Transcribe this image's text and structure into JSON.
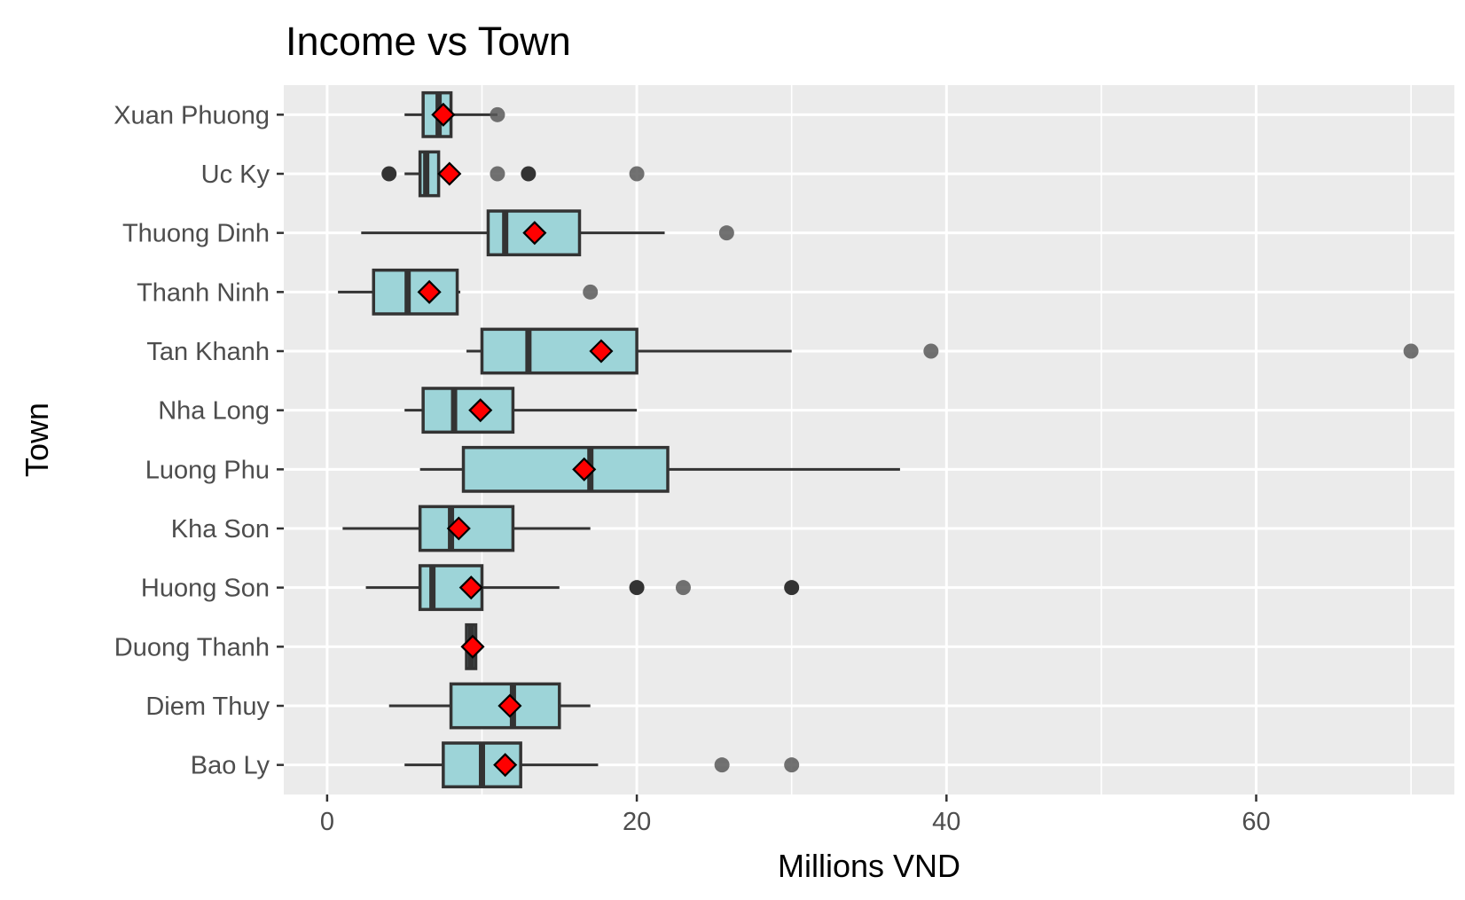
{
  "chart_data": {
    "type": "boxplot",
    "orientation": "horizontal",
    "title": "Income vs Town",
    "xlabel": "Millions VND",
    "ylabel": "Town",
    "xlim": [
      -2.8,
      72.8
    ],
    "x_ticks": [
      0,
      20,
      40,
      60
    ],
    "grid": true,
    "legend": "none",
    "colors": {
      "panel": "#ebebeb",
      "grid": "#ffffff",
      "box_fill": "#9dd4d8",
      "box_stroke": "#333333",
      "mean_marker": "#ff0000",
      "outlier": "#595959",
      "outlier_dark": "#333333"
    },
    "categories": [
      "Bao Ly",
      "Diem Thuy",
      "Duong Thanh",
      "Huong Son",
      "Kha Son",
      "Luong Phu",
      "Nha Long",
      "Tan Khanh",
      "Thanh Ninh",
      "Thuong Dinh",
      "Uc Ky",
      "Xuan Phuong"
    ],
    "series": [
      {
        "category": "Bao Ly",
        "whisker_low": 5.0,
        "q1": 7.5,
        "median": 10.0,
        "q3": 12.5,
        "whisker_high": 17.5,
        "mean": 11.5,
        "outliers": [
          {
            "x": 25.5,
            "dark": false
          },
          {
            "x": 30.0,
            "dark": false
          }
        ]
      },
      {
        "category": "Diem Thuy",
        "whisker_low": 4.0,
        "q1": 8.0,
        "median": 12.0,
        "q3": 15.0,
        "whisker_high": 17.0,
        "mean": 11.8,
        "outliers": []
      },
      {
        "category": "Duong Thanh",
        "whisker_low": 9.0,
        "q1": 9.0,
        "median": 9.3,
        "q3": 9.6,
        "whisker_high": 9.6,
        "mean": 9.4,
        "outliers": []
      },
      {
        "category": "Huong Son",
        "whisker_low": 2.5,
        "q1": 6.0,
        "median": 6.8,
        "q3": 10.0,
        "whisker_high": 15.0,
        "mean": 9.3,
        "outliers": [
          {
            "x": 20.0,
            "dark": true
          },
          {
            "x": 23.0,
            "dark": false
          },
          {
            "x": 30.0,
            "dark": true
          }
        ]
      },
      {
        "category": "Kha Son",
        "whisker_low": 1.0,
        "q1": 6.0,
        "median": 8.0,
        "q3": 12.0,
        "whisker_high": 17.0,
        "mean": 8.5,
        "outliers": []
      },
      {
        "category": "Luong Phu",
        "whisker_low": 6.0,
        "q1": 8.8,
        "median": 17.0,
        "q3": 22.0,
        "whisker_high": 37.0,
        "mean": 16.6,
        "outliers": []
      },
      {
        "category": "Nha Long",
        "whisker_low": 5.0,
        "q1": 6.2,
        "median": 8.2,
        "q3": 12.0,
        "whisker_high": 20.0,
        "mean": 9.9,
        "outliers": []
      },
      {
        "category": "Tan Khanh",
        "whisker_low": 9.0,
        "q1": 10.0,
        "median": 13.0,
        "q3": 20.0,
        "whisker_high": 30.0,
        "mean": 17.7,
        "outliers": [
          {
            "x": 39.0,
            "dark": false
          },
          {
            "x": 70.0,
            "dark": false
          }
        ]
      },
      {
        "category": "Thanh Ninh",
        "whisker_low": 0.7,
        "q1": 3.0,
        "median": 5.2,
        "q3": 8.4,
        "whisker_high": 8.6,
        "mean": 6.6,
        "outliers": [
          {
            "x": 17.0,
            "dark": false
          }
        ]
      },
      {
        "category": "Thuong Dinh",
        "whisker_low": 2.2,
        "q1": 10.4,
        "median": 11.5,
        "q3": 16.3,
        "whisker_high": 21.8,
        "mean": 13.4,
        "outliers": [
          {
            "x": 25.8,
            "dark": false
          }
        ]
      },
      {
        "category": "Uc Ky",
        "whisker_low": 5.0,
        "q1": 6.0,
        "median": 6.4,
        "q3": 7.2,
        "whisker_high": 7.2,
        "mean": 7.9,
        "outliers": [
          {
            "x": 4.0,
            "dark": true
          },
          {
            "x": 11.0,
            "dark": false
          },
          {
            "x": 13.0,
            "dark": true
          },
          {
            "x": 20.0,
            "dark": false
          }
        ]
      },
      {
        "category": "Xuan Phuong",
        "whisker_low": 5.0,
        "q1": 6.2,
        "median": 7.2,
        "q3": 8.0,
        "whisker_high": 11.0,
        "mean": 7.5,
        "outliers": [
          {
            "x": 11.0,
            "dark": false
          }
        ]
      }
    ]
  }
}
